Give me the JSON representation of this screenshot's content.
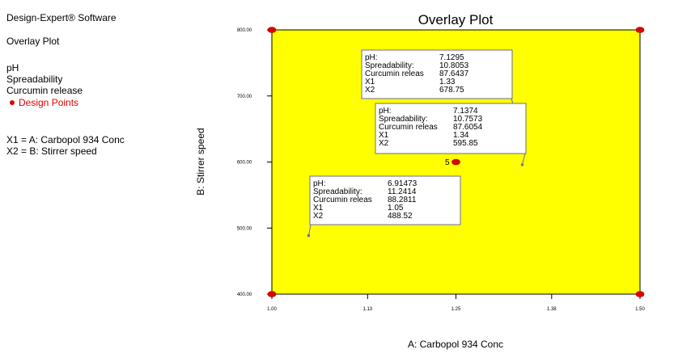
{
  "sidebar": {
    "software": "Design-Expert® Software",
    "plot_type": "Overlay Plot",
    "responses": [
      "pH",
      "Spreadability",
      "Curcumin release"
    ],
    "legend_design_points": "Design Points",
    "factors": [
      "X1 = A: Carbopol 934 Conc",
      "X2 = B: Stirrer speed"
    ]
  },
  "colors": {
    "region_fill": "#ffff00",
    "design_point": "#e00000",
    "axis": "#000000",
    "flag_border": "#6b6b9a"
  },
  "chart_data": {
    "type": "scatter",
    "title": "Overlay Plot",
    "xlabel": "A: Carbopol 934 Conc",
    "ylabel": "B: Stirrer speed",
    "xlim": [
      1.0,
      1.5
    ],
    "ylim": [
      400,
      800
    ],
    "x_ticks": [
      "1.00",
      "1.13",
      "1.25",
      "1.38",
      "1.50"
    ],
    "y_ticks": [
      "400.00",
      "500.00",
      "600.00",
      "700.00",
      "800.00"
    ],
    "grid": false,
    "feasible_region_color": "#ffff00",
    "design_points": [
      {
        "x": 1.0,
        "y": 800
      },
      {
        "x": 1.5,
        "y": 800
      },
      {
        "x": 1.0,
        "y": 400
      },
      {
        "x": 1.5,
        "y": 400
      },
      {
        "x": 1.25,
        "y": 600,
        "label": "5"
      }
    ],
    "flags": [
      {
        "x": 1.33,
        "y": 678.75,
        "rows": [
          [
            "pH:",
            "7.1295"
          ],
          [
            "Spreadability:",
            "10.8053"
          ],
          [
            "Curcumin releas",
            "87.6437"
          ],
          [
            "X1",
            "1.33"
          ],
          [
            "X2",
            "678.75"
          ]
        ]
      },
      {
        "x": 1.34,
        "y": 595.85,
        "rows": [
          [
            "pH:",
            "7.1374"
          ],
          [
            "Spreadability:",
            "10.7573"
          ],
          [
            "Curcumin releas",
            "87.6054"
          ],
          [
            "X1",
            "1.34"
          ],
          [
            "X2",
            "595.85"
          ]
        ]
      },
      {
        "x": 1.05,
        "y": 488.52,
        "rows": [
          [
            "pH:",
            "6.91473"
          ],
          [
            "Spreadability:",
            "11.2414"
          ],
          [
            "Curcumin releas",
            "88.2811"
          ],
          [
            "X1",
            "1.05"
          ],
          [
            "X2",
            "488.52"
          ]
        ]
      }
    ]
  }
}
